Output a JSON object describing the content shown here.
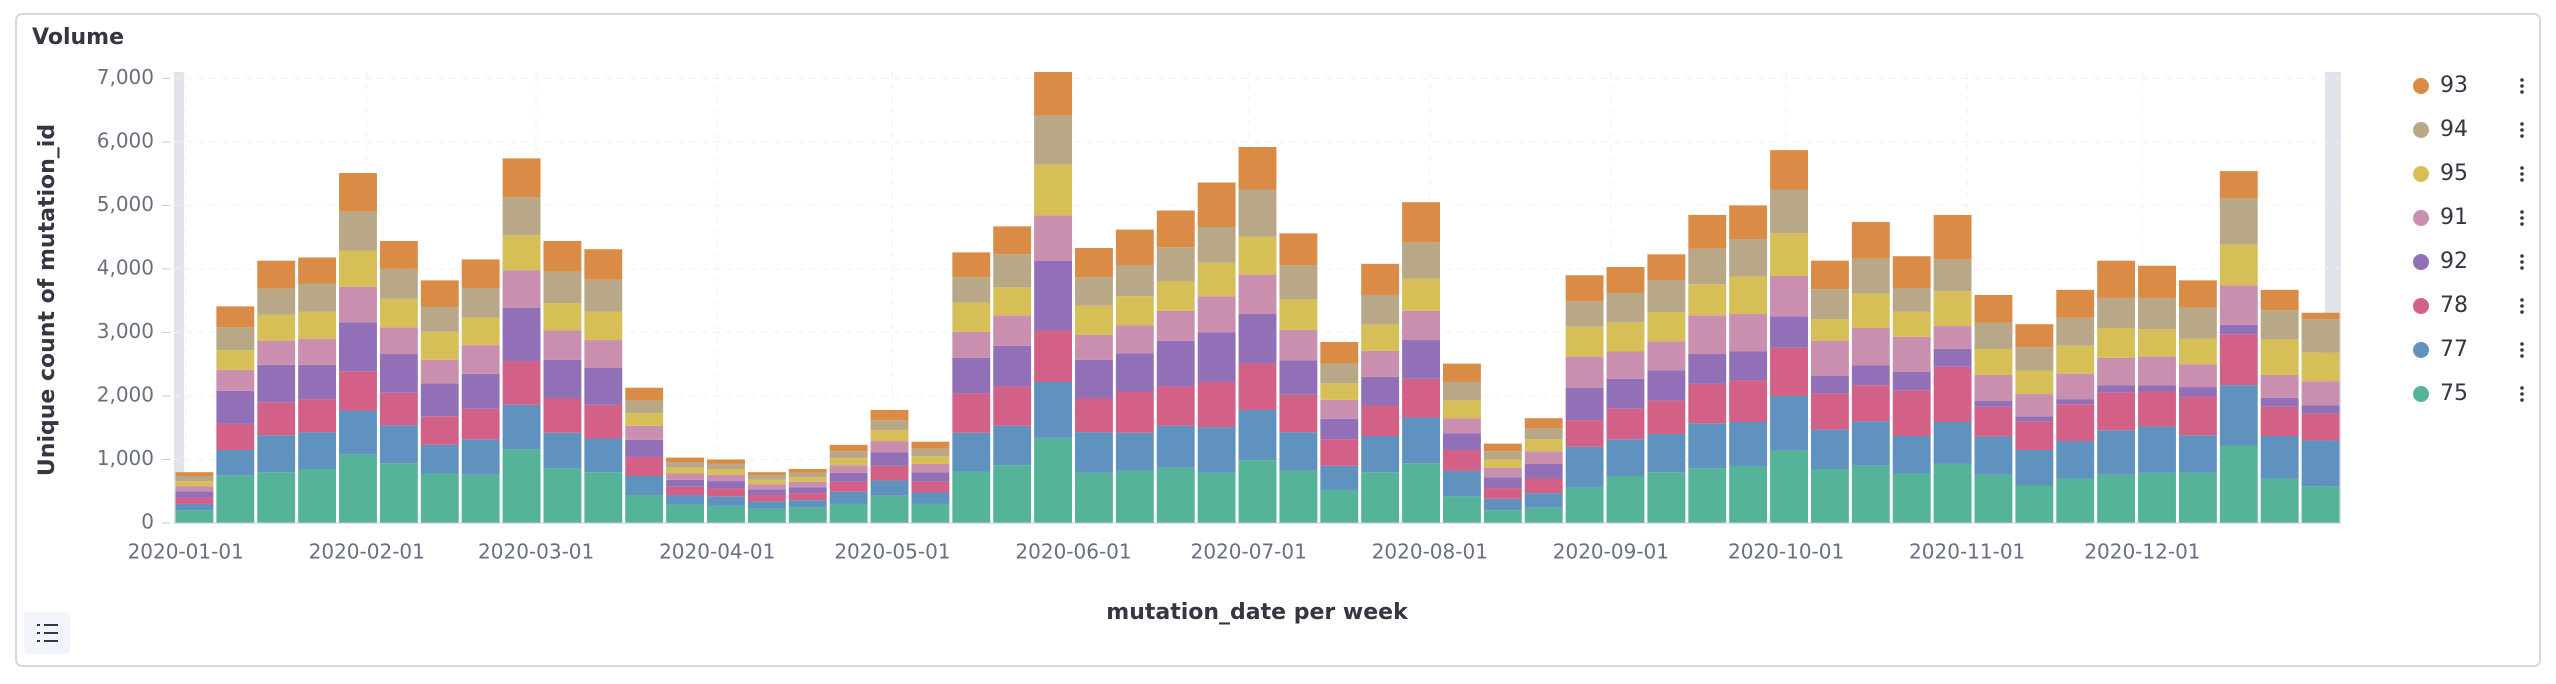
{
  "chart_data": {
    "type": "bar",
    "stacked": true,
    "title": "Volume",
    "x_label": "mutation_date per week",
    "y_label": "Unique count of mutation_id",
    "x": [
      "2019-12-30",
      "2020-01-06",
      "2020-01-13",
      "2020-01-20",
      "2020-01-27",
      "2020-02-03",
      "2020-02-10",
      "2020-02-17",
      "2020-02-24",
      "2020-03-02",
      "2020-03-09",
      "2020-03-16",
      "2020-03-23",
      "2020-03-30",
      "2020-04-06",
      "2020-04-13",
      "2020-04-20",
      "2020-04-27",
      "2020-05-04",
      "2020-05-11",
      "2020-05-18",
      "2020-05-25",
      "2020-06-01",
      "2020-06-08",
      "2020-06-15",
      "2020-06-22",
      "2020-06-29",
      "2020-07-06",
      "2020-07-13",
      "2020-07-20",
      "2020-07-27",
      "2020-08-03",
      "2020-08-10",
      "2020-08-17",
      "2020-08-24",
      "2020-08-31",
      "2020-09-07",
      "2020-09-14",
      "2020-09-21",
      "2020-09-28",
      "2020-10-05",
      "2020-10-12",
      "2020-10-19",
      "2020-10-26",
      "2020-11-02",
      "2020-11-09",
      "2020-11-16",
      "2020-11-23",
      "2020-11-30",
      "2020-12-07",
      "2020-12-14",
      "2020-12-21",
      "2020-12-28"
    ],
    "xlim": [
      "2019-12-30",
      "2021-01-04"
    ],
    "xticks": [
      "2020-01-01",
      "2020-02-01",
      "2020-03-01",
      "2020-04-01",
      "2020-05-01",
      "2020-06-01",
      "2020-07-01",
      "2020-08-01",
      "2020-09-01",
      "2020-10-01",
      "2020-11-01",
      "2020-12-01"
    ],
    "ylim": [
      0,
      7100
    ],
    "yticks": [
      0,
      {
        "value": 1000,
        "label": "1,000"
      },
      {
        "value": 2000,
        "label": "2,000"
      },
      {
        "value": 3000,
        "label": "3,000"
      },
      {
        "value": 4000,
        "label": "4,000"
      },
      {
        "value": 5000,
        "label": "5,000"
      },
      {
        "value": 6000,
        "label": "6,000"
      },
      {
        "value": 7000,
        "label": "7,000"
      }
    ],
    "grid": true,
    "legend": "right",
    "series": [
      {
        "name": "75",
        "color": "#54b399",
        "values": [
          200,
          750,
          800,
          850,
          1080,
          940,
          780,
          760,
          1160,
          860,
          800,
          440,
          290,
          270,
          230,
          240,
          300,
          430,
          300,
          810,
          910,
          1340,
          790,
          820,
          870,
          790,
          990,
          820,
          520,
          800,
          940,
          420,
          200,
          240,
          560,
          740,
          800,
          860,
          890,
          1140,
          850,
          900,
          780,
          930,
          760,
          590,
          700,
          760,
          790,
          790,
          1220,
          700,
          580
        ]
      },
      {
        "name": "77",
        "color": "#6092c0",
        "values": [
          100,
          400,
          580,
          580,
          690,
          600,
          450,
          560,
          700,
          560,
          530,
          300,
          150,
          150,
          110,
          120,
          190,
          240,
          180,
          610,
          620,
          880,
          640,
          600,
          660,
          720,
          790,
          610,
          380,
          570,
          720,
          400,
          180,
          230,
          640,
          580,
          600,
          710,
          700,
          860,
          620,
          700,
          590,
          660,
          600,
          560,
          590,
          700,
          730,
          590,
          950,
          670,
          720
        ]
      },
      {
        "name": "78",
        "color": "#d36086",
        "values": [
          100,
          410,
          520,
          520,
          620,
          510,
          450,
          480,
          690,
          540,
          530,
          300,
          130,
          130,
          100,
          110,
          160,
          230,
          170,
          620,
          620,
          810,
          530,
          650,
          620,
          710,
          730,
          590,
          420,
          480,
          610,
          330,
          170,
          230,
          420,
          480,
          530,
          620,
          660,
          760,
          570,
          570,
          720,
          870,
          470,
          450,
          580,
          600,
          550,
          610,
          800,
          460,
          420
        ]
      },
      {
        "name": "92",
        "color": "#9170b8",
        "values": [
          100,
          520,
          590,
          540,
          770,
          610,
          520,
          550,
          840,
          610,
          580,
          270,
          110,
          110,
          90,
          90,
          140,
          210,
          150,
          560,
          640,
          1100,
          610,
          600,
          720,
          780,
          780,
          540,
          320,
          450,
          610,
          260,
          170,
          230,
          510,
          470,
          470,
          470,
          450,
          490,
          280,
          310,
          290,
          280,
          90,
          80,
          80,
          110,
          100,
          150,
          150,
          140,
          130
        ]
      },
      {
        "name": "91",
        "color": "#ca8eae",
        "values": [
          80,
          330,
          380,
          410,
          560,
          420,
          370,
          450,
          590,
          460,
          440,
          220,
          100,
          100,
          80,
          90,
          120,
          180,
          130,
          410,
          480,
          710,
          390,
          440,
          470,
          570,
          620,
          480,
          300,
          410,
          460,
          240,
          150,
          200,
          490,
          430,
          460,
          610,
          590,
          640,
          550,
          590,
          550,
          360,
          410,
          350,
          400,
          430,
          450,
          360,
          620,
          360,
          380
        ]
      },
      {
        "name": "95",
        "color": "#d6bf57",
        "values": [
          80,
          310,
          410,
          430,
          570,
          450,
          440,
          430,
          550,
          430,
          450,
          200,
          90,
          90,
          70,
          70,
          110,
          170,
          120,
          460,
          440,
          800,
          460,
          460,
          470,
          530,
          600,
          480,
          260,
          410,
          510,
          280,
          130,
          190,
          470,
          460,
          460,
          490,
          590,
          670,
          340,
          540,
          400,
          550,
          410,
          370,
          440,
          470,
          430,
          400,
          640,
          560,
          450
        ]
      },
      {
        "name": "94",
        "color": "#b9a888",
        "values": [
          80,
          360,
          410,
          440,
          610,
          470,
          390,
          470,
          600,
          500,
          500,
          200,
          90,
          80,
          70,
          70,
          110,
          160,
          120,
          400,
          520,
          770,
          450,
          480,
          530,
          560,
          740,
          540,
          310,
          470,
          570,
          290,
          130,
          170,
          400,
          460,
          500,
          560,
          590,
          690,
          470,
          550,
          370,
          500,
          410,
          370,
          440,
          470,
          490,
          490,
          730,
          460,
          530
        ]
      },
      {
        "name": "93",
        "color": "#da8b45",
        "values": [
          60,
          330,
          440,
          410,
          610,
          440,
          420,
          450,
          610,
          480,
          480,
          200,
          70,
          70,
          50,
          60,
          100,
          160,
          110,
          390,
          440,
          690,
          460,
          570,
          580,
          700,
          670,
          500,
          340,
          490,
          630,
          290,
          120,
          160,
          410,
          410,
          410,
          530,
          530,
          620,
          450,
          580,
          500,
          700,
          440,
          360,
          440,
          590,
          510,
          430,
          430,
          320,
          100
        ]
      }
    ]
  }
}
